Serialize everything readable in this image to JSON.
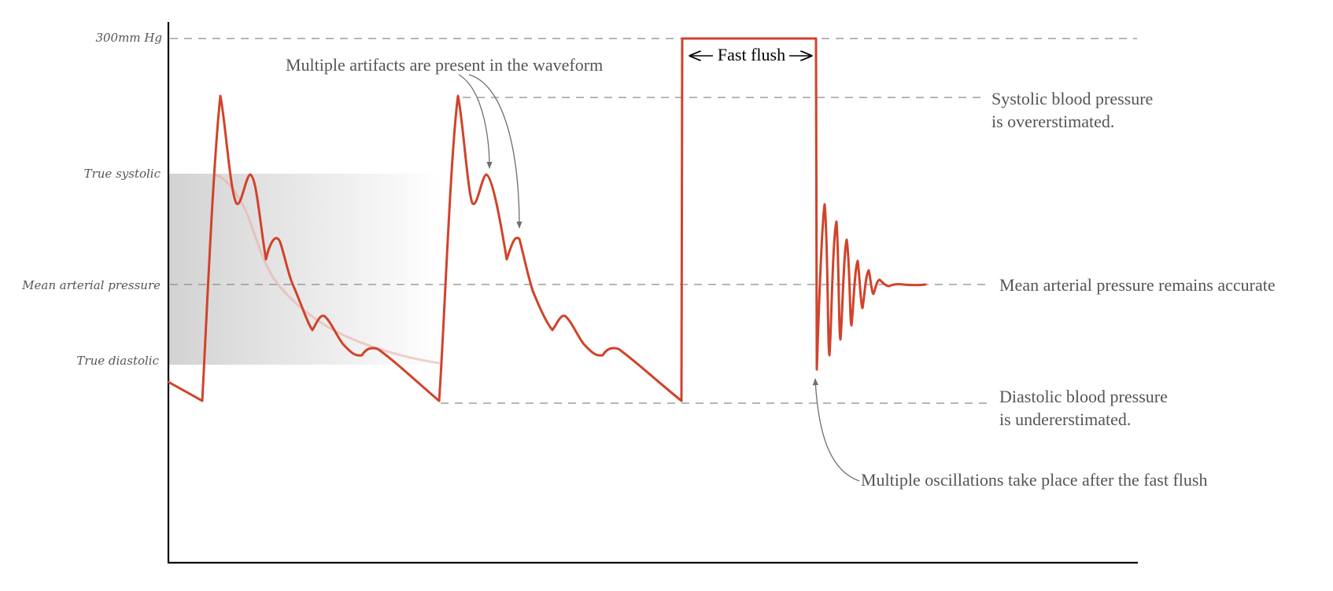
{
  "y_labels": {
    "max": "300mm Hg",
    "true_systolic": "True systolic",
    "map": "Mean arterial pressure",
    "true_diastolic": "True diastolic"
  },
  "annotations": {
    "artifacts": "Multiple artifacts are present in the waveform",
    "fast_flush": "Fast flush",
    "systolic_line1": "Systolic blood pressure",
    "systolic_line2": "is overerstimated.",
    "map_note": "Mean arterial pressure remains accurate",
    "diastolic_line1": "Diastolic blood pressure",
    "diastolic_line2": "is undererstimated.",
    "oscillations": "Multiple oscillations take place after the fast flush"
  },
  "colors": {
    "waveform": "#d0432b",
    "ideal_waveform": "#e8a9a3",
    "true_range_band": "#d2d2d2"
  }
}
